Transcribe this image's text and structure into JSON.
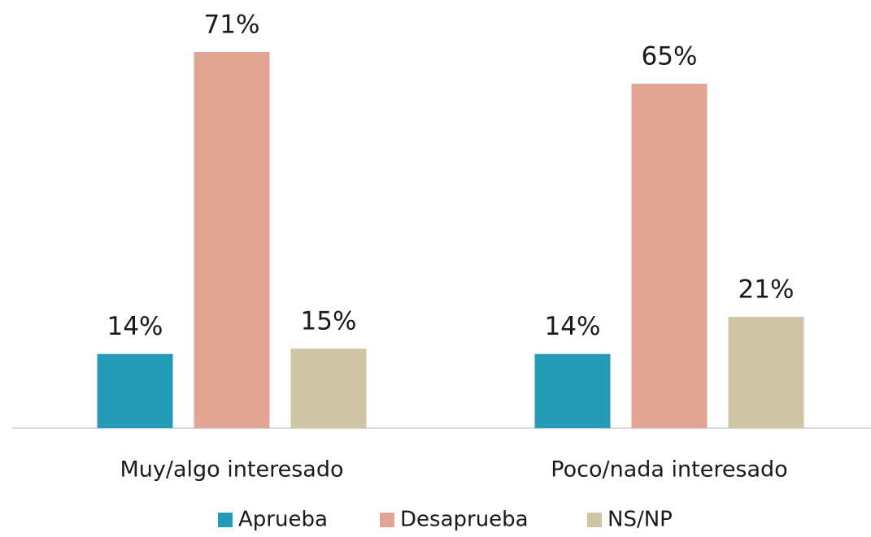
{
  "chart_data": {
    "type": "bar",
    "categories": [
      "Muy/algo interesado",
      "Poco/nada interesado"
    ],
    "series": [
      {
        "name": "Aprueba",
        "color": "#269bb8",
        "values": [
          14,
          14
        ],
        "value_labels": [
          "14%",
          "14%"
        ]
      },
      {
        "name": "Desaprueba",
        "color": "#e2a593",
        "values": [
          71,
          65
        ],
        "value_labels": [
          "71%",
          "65%"
        ]
      },
      {
        "name": "NS/NP",
        "color": "#cdc5a3",
        "values": [
          15,
          21
        ],
        "value_labels": [
          "15%",
          "21%"
        ]
      }
    ],
    "legend": "bottom"
  }
}
